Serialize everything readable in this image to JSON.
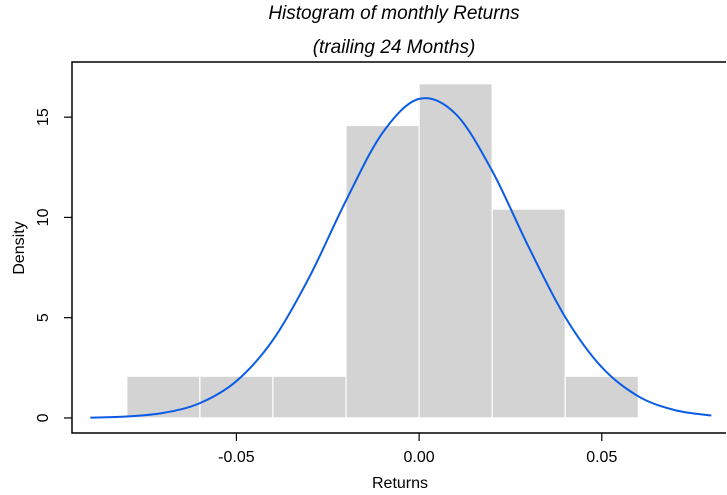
{
  "chart_data": {
    "type": "histogram",
    "title": "Histogram of monthly Returns",
    "subtitle": "(trailing 24 Months)",
    "x_label": "Returns",
    "y_label": "Density",
    "bins": [
      -0.08,
      -0.06,
      -0.04,
      -0.02,
      0,
      0.02,
      0.04,
      0.06
    ],
    "values": [
      2.083,
      2.083,
      2.083,
      14.583,
      16.667,
      10.417,
      2.083
    ],
    "color": "#d3d3d3",
    "curve": {
      "color": "#0a5ce6",
      "x": [
        -0.09,
        -0.08,
        -0.07,
        -0.06,
        -0.05,
        -0.04,
        -0.03,
        -0.02,
        -0.01,
        0,
        0.01,
        0.02,
        0.03,
        0.04,
        0.05,
        0.06,
        0.07,
        0.08
      ],
      "values": [
        0.018,
        0.074,
        0.252,
        0.74,
        1.84,
        3.89,
        7.04,
        10.84,
        14.22,
        15.91,
        15.16,
        12.32,
        8.52,
        5.03,
        2.53,
        1.08,
        0.39,
        0.12
      ]
    },
    "xlim": [
      -0.095,
      0.084
    ],
    "xticks": [
      {
        "value": -0.05,
        "label": "-0.05"
      },
      {
        "value": 0,
        "label": "0.00"
      },
      {
        "value": 0.05,
        "label": "0.05"
      }
    ],
    "ylim": [
      -0.75,
      17.75
    ],
    "yticks": [
      0,
      5,
      10,
      15
    ]
  }
}
